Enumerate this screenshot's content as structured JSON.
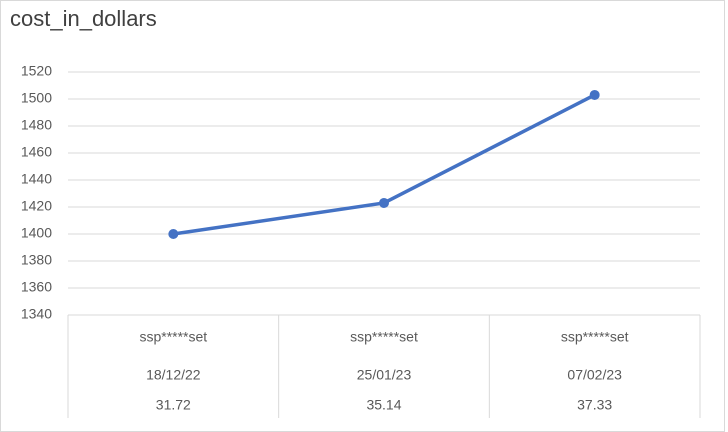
{
  "chart_data": {
    "type": "line",
    "title": "cost_in_dollars",
    "categories": [
      [
        "ssp*****set",
        "18/12/22",
        "31.72"
      ],
      [
        "ssp*****set",
        "25/01/23",
        "35.14"
      ],
      [
        "ssp*****set",
        "07/02/23",
        "37.33"
      ]
    ],
    "series": [
      {
        "color": "#4472c4",
        "values": [
          1400,
          1423,
          1503
        ]
      }
    ],
    "ylim": [
      1340,
      1520
    ],
    "yticks": [
      1340,
      1360,
      1380,
      1400,
      1420,
      1440,
      1460,
      1480,
      1500,
      1520
    ],
    "grid": true
  }
}
